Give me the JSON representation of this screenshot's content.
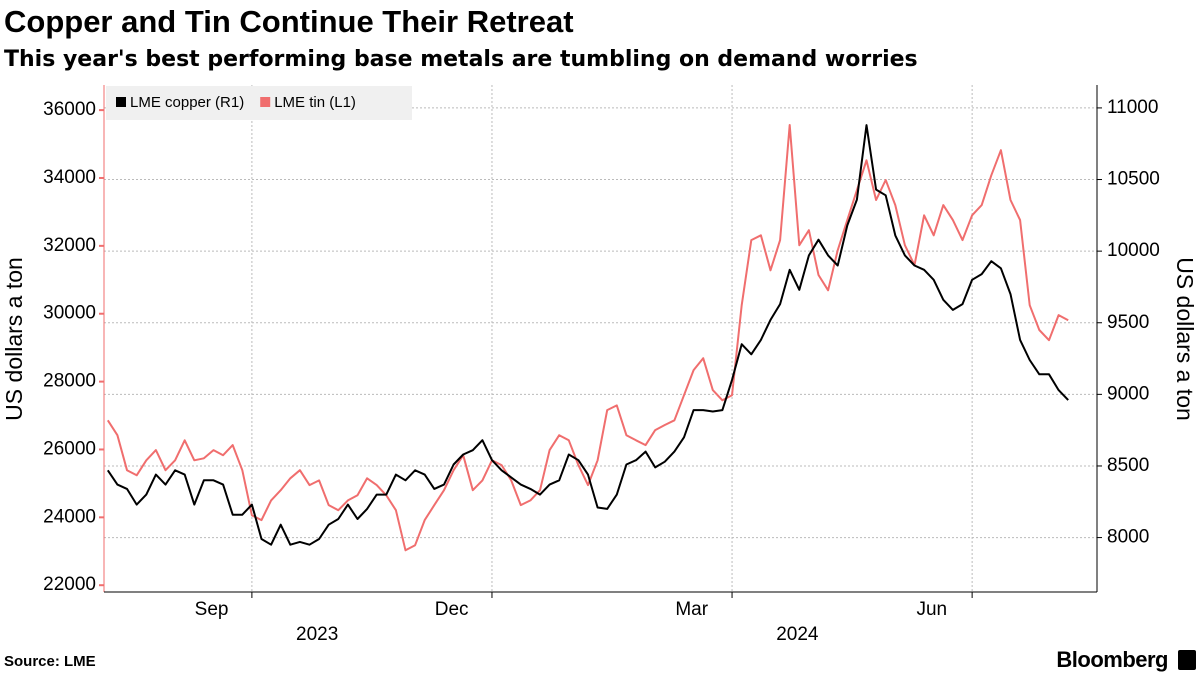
{
  "chart_data": {
    "type": "line",
    "title": "Copper and Tin Continue Their Retreat",
    "subtitle": "This year's best performing base metals are tumbling on demand worries",
    "y_label": "US dollars a ton",
    "y2_label": "US dollars a ton",
    "source": "Source: LME",
    "brand": "Bloomberg",
    "legend": "upper left",
    "grid": true,
    "x": [
      2023.6,
      2023.61,
      2023.62,
      2023.63,
      2023.64,
      2023.65,
      2023.66,
      2023.67,
      2023.68,
      2023.69,
      2023.7,
      2023.71,
      2023.72,
      2023.73,
      2023.74,
      2023.75,
      2023.76,
      2023.77,
      2023.78,
      2023.79,
      2023.8,
      2023.81,
      2023.82,
      2023.83,
      2023.84,
      2023.85,
      2023.86,
      2023.87,
      2023.88,
      2023.89,
      2023.9,
      2023.91,
      2023.92,
      2023.93,
      2023.94,
      2023.95,
      2023.96,
      2023.97,
      2023.98,
      2023.99,
      2024.0,
      2024.01,
      2024.02,
      2024.03,
      2024.04,
      2024.05,
      2024.06,
      2024.07,
      2024.08,
      2024.09,
      2024.1,
      2024.11,
      2024.12,
      2024.13,
      2024.14,
      2024.15,
      2024.16,
      2024.17,
      2024.18,
      2024.19,
      2024.2,
      2024.21,
      2024.22,
      2024.23,
      2024.24,
      2024.25,
      2024.26,
      2024.27,
      2024.28,
      2024.29,
      2024.3,
      2024.31,
      2024.32,
      2024.33,
      2024.34,
      2024.35,
      2024.36,
      2024.37,
      2024.38,
      2024.39,
      2024.4,
      2024.41,
      2024.42,
      2024.43,
      2024.44,
      2024.45,
      2024.46,
      2024.47,
      2024.48,
      2024.49,
      2024.5,
      2024.51,
      2024.52,
      2024.53,
      2024.54,
      2024.55,
      2024.56,
      2024.57,
      2024.58,
      2024.59,
      2024.6
    ],
    "xlim": [
      2023.596,
      2024.604
    ],
    "xticks": [
      {
        "value": 2023.708,
        "label": "Sep"
      },
      {
        "value": 2023.958,
        "label": "Dec"
      },
      {
        "value": 2024.208,
        "label": "Mar"
      },
      {
        "value": 2024.458,
        "label": "Jun"
      }
    ],
    "xgrid": [
      2023.75,
      2024.0,
      2024.25,
      2024.5
    ],
    "x_year_labels": [
      {
        "value": 2023.818,
        "label": "2023"
      },
      {
        "value": 2024.318,
        "label": "2024"
      }
    ],
    "ylim": [
      21800,
      36740
    ],
    "yticks": [
      22000,
      24000,
      26000,
      28000,
      30000,
      32000,
      34000,
      36000
    ],
    "y2lim": [
      7620,
      11160
    ],
    "y2ticks": [
      8000,
      8500,
      9000,
      9500,
      10000,
      10500,
      11000
    ],
    "series": [
      {
        "name": "LME copper (R1)",
        "color": "#000000",
        "axis": "y2",
        "values": [
          8470,
          8370,
          8340,
          8230,
          8300,
          8440,
          8370,
          8470,
          8440,
          8230,
          8400,
          8400,
          8370,
          8160,
          8160,
          8230,
          7990,
          7950,
          8090,
          7950,
          7970,
          7950,
          7990,
          8090,
          8130,
          8230,
          8130,
          8200,
          8300,
          8300,
          8440,
          8400,
          8470,
          8440,
          8340,
          8370,
          8510,
          8580,
          8610,
          8680,
          8540,
          8470,
          8420,
          8370,
          8340,
          8300,
          8370,
          8400,
          8580,
          8540,
          8440,
          8210,
          8200,
          8300,
          8510,
          8540,
          8600,
          8490,
          8530,
          8600,
          8700,
          8890,
          8890,
          8880,
          8890,
          9100,
          9350,
          9280,
          9380,
          9520,
          9630,
          9870,
          9730,
          9970,
          10080,
          9970,
          9900,
          10180,
          10360,
          10880,
          10430,
          10390,
          10110,
          9970,
          9900,
          9870,
          9800,
          9660,
          9590,
          9630,
          9800,
          9840,
          9930,
          9880,
          9700,
          9380,
          9240,
          9140,
          9140,
          9030,
          8960
        ]
      },
      {
        "name": "LME tin (L1)",
        "color": "#f06e6e",
        "axis": "y",
        "values": [
          26860,
          26420,
          25390,
          25240,
          25680,
          25980,
          25390,
          25680,
          26270,
          25680,
          25740,
          25980,
          25830,
          26130,
          25390,
          24060,
          23920,
          24500,
          24800,
          25150,
          25390,
          24950,
          25090,
          24360,
          24210,
          24500,
          24650,
          25150,
          24950,
          24650,
          24210,
          23030,
          23180,
          23920,
          24360,
          24800,
          25390,
          25830,
          24800,
          25090,
          25680,
          25540,
          25090,
          24360,
          24500,
          24800,
          25980,
          26420,
          26270,
          25540,
          24950,
          25680,
          27160,
          27300,
          26420,
          26270,
          26130,
          26570,
          26720,
          26860,
          27600,
          28340,
          28690,
          27750,
          27450,
          27600,
          30250,
          32170,
          32310,
          31280,
          32170,
          35560,
          32020,
          32460,
          31140,
          30690,
          31870,
          32760,
          33640,
          34520,
          33350,
          33940,
          33200,
          32020,
          31430,
          32900,
          32310,
          33200,
          32760,
          32170,
          32900,
          33200,
          34080,
          34820,
          33350,
          32760,
          30250,
          29520,
          29220,
          29960,
          29810
        ]
      }
    ]
  }
}
